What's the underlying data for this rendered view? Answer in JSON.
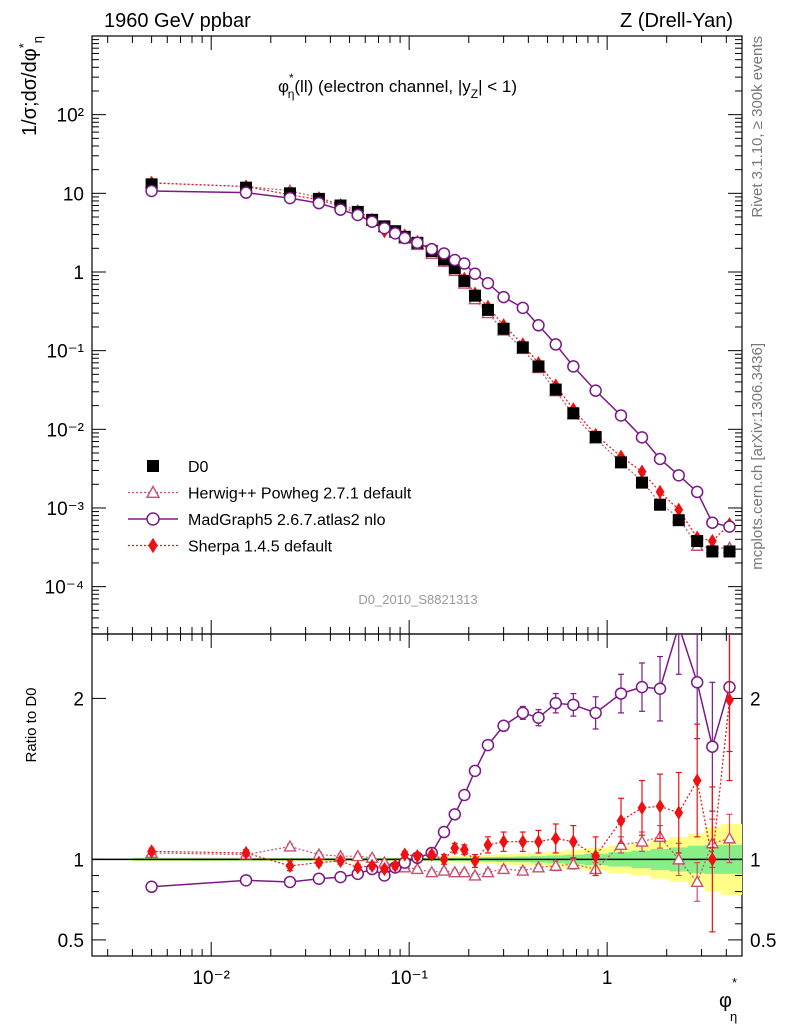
{
  "header": {
    "left": "1960 GeV ppbar",
    "right": "Z (Drell-Yan)"
  },
  "side_texts": {
    "rivet": "Rivet 3.1.10, ≥ 300k events",
    "mcplots": "mcplots.cern.ch [arXiv:1306.3436]"
  },
  "watermark": "D0_2010_S8821313",
  "chart_data": [
    {
      "type": "scatter",
      "panel": "main",
      "title_parts": [
        "φ",
        "*",
        "η",
        "(ll) (electron channel, |y",
        "Z",
        "| < 1)"
      ],
      "ylabel_parts": [
        "1/σ;dσ/dφ",
        "*",
        "η"
      ],
      "xscale": "log",
      "yscale": "log",
      "xlim": [
        0.0025,
        4.8
      ],
      "ylim": [
        2.5e-05,
        1000
      ],
      "ytick_labels": [
        "10⁻⁴",
        "10⁻³",
        "10⁻²",
        "10⁻¹",
        "1",
        "10",
        "10²"
      ],
      "legend_position": "bottom-left",
      "x": [
        0.005,
        0.015,
        0.025,
        0.035,
        0.045,
        0.055,
        0.065,
        0.075,
        0.085,
        0.095,
        0.11,
        0.13,
        0.15,
        0.17,
        0.19,
        0.215,
        0.25,
        0.3,
        0.375,
        0.45,
        0.55,
        0.675,
        0.875,
        1.175,
        1.5,
        1.85,
        2.3,
        2.85,
        3.4,
        4.15
      ],
      "series": [
        {
          "name": "D0",
          "marker": "square",
          "color": "#000000",
          "values": [
            13.0,
            11.8,
            10.0,
            8.5,
            7.0,
            5.8,
            4.6,
            3.8,
            3.3,
            2.8,
            2.35,
            1.85,
            1.45,
            1.12,
            0.77,
            0.5,
            0.33,
            0.19,
            0.11,
            0.063,
            0.032,
            0.016,
            0.008,
            0.0038,
            0.0021,
            0.0011,
            0.0007,
            0.00038,
            0.00028,
            0.00028
          ]
        },
        {
          "name": "Herwig++ Powheg 2.7.1 default",
          "marker": "open-triangle",
          "line": "dotted",
          "color": "#c8506e",
          "values": [
            13.5,
            12.2,
            10.8,
            8.8,
            7.2,
            6.0,
            4.65,
            3.75,
            3.15,
            2.65,
            2.2,
            1.7,
            1.35,
            1.03,
            0.71,
            0.45,
            0.3,
            0.18,
            0.105,
            0.06,
            0.0305,
            0.0155,
            0.0076,
            0.0038,
            0.0022,
            0.00115,
            0.00075,
            0.00033,
            0.00031,
            0.00031
          ]
        },
        {
          "name": "MadGraph5 2.6.7.atlas2 nlo",
          "marker": "open-circle",
          "line": "solid",
          "color": "#7b1a86",
          "values": [
            10.7,
            10.2,
            8.7,
            7.5,
            6.2,
            5.3,
            4.35,
            3.6,
            3.1,
            2.7,
            2.35,
            1.95,
            1.72,
            1.42,
            1.28,
            0.95,
            0.72,
            0.48,
            0.35,
            0.21,
            0.12,
            0.063,
            0.031,
            0.015,
            0.0079,
            0.0042,
            0.0026,
            0.0016,
            0.00065,
            0.00058
          ]
        },
        {
          "name": "Sherpa 1.4.5 default",
          "marker": "filled-diamond",
          "line": "dotted",
          "color": "#ee1111",
          "values": [
            13.6,
            12.2,
            9.6,
            8.3,
            6.9,
            5.5,
            4.4,
            3.3,
            3.2,
            2.9,
            2.4,
            1.9,
            1.45,
            1.2,
            0.82,
            0.53,
            0.36,
            0.21,
            0.12,
            0.069,
            0.036,
            0.018,
            0.0085,
            0.0045,
            0.0029,
            0.0016,
            0.00095,
            0.00042,
            0.00038,
            0.00062
          ]
        }
      ]
    },
    {
      "type": "scatter",
      "panel": "ratio",
      "ylabel": "Ratio to D0",
      "xlabel_parts": [
        "φ",
        "*",
        "η"
      ],
      "xscale": "log",
      "xlim": [
        0.0025,
        4.8
      ],
      "ylim": [
        0.4,
        2.4
      ],
      "xtick_labels": [
        "10⁻²",
        "10⁻¹",
        "1"
      ],
      "ytick_labels": [
        "0.5",
        "1",
        "2"
      ],
      "x": [
        0.005,
        0.015,
        0.025,
        0.035,
        0.045,
        0.055,
        0.065,
        0.075,
        0.085,
        0.095,
        0.11,
        0.13,
        0.15,
        0.17,
        0.19,
        0.215,
        0.25,
        0.3,
        0.375,
        0.45,
        0.55,
        0.675,
        0.875,
        1.175,
        1.5,
        1.85,
        2.3,
        2.85,
        3.4,
        4.15
      ],
      "band_inner": [
        0.007,
        0.007,
        0.007,
        0.007,
        0.007,
        0.007,
        0.007,
        0.007,
        0.007,
        0.007,
        0.008,
        0.008,
        0.009,
        0.01,
        0.011,
        0.012,
        0.014,
        0.016,
        0.018,
        0.02,
        0.025,
        0.03,
        0.035,
        0.045,
        0.055,
        0.065,
        0.075,
        0.085,
        0.09,
        0.09
      ],
      "band_outer": [
        0.012,
        0.012,
        0.012,
        0.012,
        0.012,
        0.012,
        0.012,
        0.012,
        0.012,
        0.012,
        0.014,
        0.015,
        0.017,
        0.02,
        0.022,
        0.025,
        0.028,
        0.032,
        0.036,
        0.04,
        0.05,
        0.06,
        0.07,
        0.085,
        0.1,
        0.12,
        0.14,
        0.16,
        0.2,
        0.22
      ],
      "series": [
        {
          "name": "Herwig++ Powheg 2.7.1 default",
          "marker": "open-triangle",
          "line": "dotted",
          "color": "#c8506e",
          "values": [
            1.04,
            1.03,
            1.08,
            1.03,
            1.02,
            1.02,
            1.01,
            0.98,
            0.96,
            0.95,
            0.94,
            0.92,
            0.93,
            0.92,
            0.92,
            0.9,
            0.92,
            0.94,
            0.93,
            0.95,
            0.96,
            0.97,
            0.94,
            1.09,
            1.11,
            1.14,
            1.0,
            0.86,
            1.1,
            1.13
          ],
          "errors": [
            0.01,
            0.01,
            0.015,
            0.015,
            0.015,
            0.015,
            0.015,
            0.015,
            0.015,
            0.015,
            0.015,
            0.015,
            0.015,
            0.015,
            0.015,
            0.015,
            0.02,
            0.02,
            0.02,
            0.02,
            0.03,
            0.03,
            0.04,
            0.05,
            0.06,
            0.07,
            0.1,
            0.12,
            0.15,
            0.15
          ]
        },
        {
          "name": "MadGraph5 2.6.7.atlas2 nlo",
          "marker": "open-circle",
          "line": "solid",
          "color": "#7b1a86",
          "values": [
            0.83,
            0.87,
            0.86,
            0.88,
            0.89,
            0.91,
            0.94,
            0.9,
            0.95,
            0.98,
            1.01,
            1.04,
            1.17,
            1.28,
            1.4,
            1.55,
            1.71,
            1.83,
            1.91,
            1.88,
            1.97,
            1.96,
            1.91,
            2.03,
            2.07,
            2.06,
            2.45,
            2.1,
            1.7,
            2.07
          ],
          "errors": [
            0.005,
            0.008,
            0.008,
            0.008,
            0.008,
            0.008,
            0.008,
            0.008,
            0.008,
            0.008,
            0.01,
            0.01,
            0.012,
            0.015,
            0.015,
            0.02,
            0.02,
            0.03,
            0.04,
            0.05,
            0.06,
            0.07,
            0.1,
            0.12,
            0.15,
            0.2,
            0.3,
            0.35,
            0.4,
            0.4
          ]
        },
        {
          "name": "Sherpa 1.4.5 default",
          "marker": "filled-diamond",
          "line": "dotted",
          "color": "#ee1111",
          "values": [
            1.05,
            1.04,
            0.96,
            0.98,
            0.99,
            0.95,
            0.96,
            0.94,
            0.96,
            1.03,
            1.02,
            1.03,
            1.0,
            1.07,
            1.06,
            0.99,
            1.09,
            1.11,
            1.11,
            1.11,
            1.13,
            1.11,
            1.02,
            1.24,
            1.32,
            1.33,
            1.29,
            1.49,
            1.0,
            1.99
          ],
          "errors": [
            0.02,
            0.02,
            0.03,
            0.02,
            0.02,
            0.02,
            0.02,
            0.02,
            0.02,
            0.02,
            0.02,
            0.02,
            0.03,
            0.03,
            0.03,
            0.04,
            0.05,
            0.06,
            0.06,
            0.07,
            0.09,
            0.1,
            0.12,
            0.14,
            0.17,
            0.2,
            0.25,
            0.35,
            0.45,
            0.5
          ]
        }
      ]
    }
  ]
}
